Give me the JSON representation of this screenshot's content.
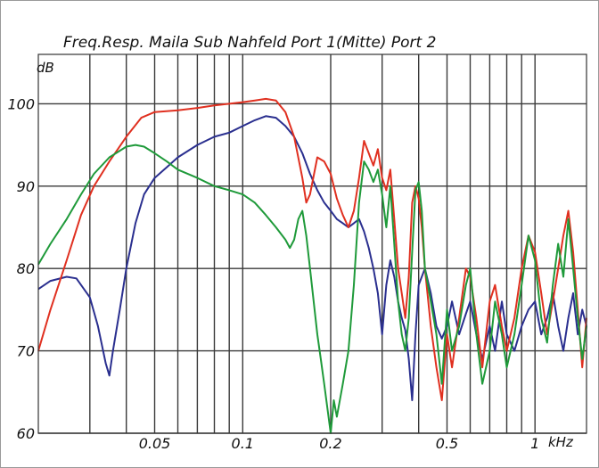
{
  "chart_data": {
    "type": "line",
    "title": "Freq.Resp. Maila Sub Nahfeld Port 1(Mitte)   Port 2",
    "ylabel": "dB",
    "xunit": "kHz",
    "xscale": "log",
    "xlim": [
      0.02,
      1.5
    ],
    "ylim": [
      60,
      106
    ],
    "grid": true,
    "y_ticks": [
      60,
      70,
      80,
      90,
      100
    ],
    "x_ticks": [
      {
        "value": 0.05,
        "label": "0.05"
      },
      {
        "value": 0.1,
        "label": "0.1"
      },
      {
        "value": 0.2,
        "label": "0.2"
      },
      {
        "value": 0.5,
        "label": "0.5"
      },
      {
        "value": 1,
        "label": "1"
      }
    ],
    "x_gridlines": [
      0.03,
      0.04,
      0.05,
      0.06,
      0.07,
      0.08,
      0.09,
      0.1,
      0.2,
      0.3,
      0.4,
      0.5,
      0.6,
      0.7,
      0.8,
      0.9,
      1
    ],
    "series": [
      {
        "color": "#2a2f8f",
        "points": [
          [
            0.02,
            77.5
          ],
          [
            0.022,
            78.5
          ],
          [
            0.025,
            79.0
          ],
          [
            0.027,
            78.8
          ],
          [
            0.03,
            76.5
          ],
          [
            0.032,
            73.0
          ],
          [
            0.034,
            68.5
          ],
          [
            0.035,
            67.0
          ],
          [
            0.036,
            70.0
          ],
          [
            0.038,
            75.0
          ],
          [
            0.04,
            80.0
          ],
          [
            0.043,
            85.5
          ],
          [
            0.046,
            89.0
          ],
          [
            0.05,
            91.0
          ],
          [
            0.055,
            92.3
          ],
          [
            0.06,
            93.5
          ],
          [
            0.07,
            95.0
          ],
          [
            0.08,
            96.0
          ],
          [
            0.09,
            96.5
          ],
          [
            0.1,
            97.3
          ],
          [
            0.11,
            98.0
          ],
          [
            0.12,
            98.5
          ],
          [
            0.13,
            98.3
          ],
          [
            0.14,
            97.3
          ],
          [
            0.15,
            96.0
          ],
          [
            0.16,
            94.0
          ],
          [
            0.17,
            91.5
          ],
          [
            0.18,
            89.5
          ],
          [
            0.19,
            88.0
          ],
          [
            0.2,
            87.0
          ],
          [
            0.21,
            86.0
          ],
          [
            0.22,
            85.5
          ],
          [
            0.23,
            85.0
          ],
          [
            0.24,
            85.5
          ],
          [
            0.25,
            86.0
          ],
          [
            0.26,
            84.5
          ],
          [
            0.27,
            82.5
          ],
          [
            0.28,
            80.0
          ],
          [
            0.29,
            77.0
          ],
          [
            0.3,
            72.0
          ],
          [
            0.31,
            78.0
          ],
          [
            0.32,
            81.0
          ],
          [
            0.33,
            79.0
          ],
          [
            0.34,
            76.0
          ],
          [
            0.35,
            74.0
          ],
          [
            0.36,
            72.5
          ],
          [
            0.37,
            69.0
          ],
          [
            0.38,
            64.0
          ],
          [
            0.39,
            72.0
          ],
          [
            0.4,
            78.0
          ],
          [
            0.42,
            80.0
          ],
          [
            0.44,
            77.0
          ],
          [
            0.46,
            73.0
          ],
          [
            0.48,
            71.5
          ],
          [
            0.5,
            73.0
          ],
          [
            0.52,
            76.0
          ],
          [
            0.55,
            72.0
          ],
          [
            0.58,
            74.5
          ],
          [
            0.6,
            76.0
          ],
          [
            0.63,
            72.0
          ],
          [
            0.66,
            69.0
          ],
          [
            0.7,
            73.0
          ],
          [
            0.73,
            70.0
          ],
          [
            0.77,
            76.0
          ],
          [
            0.8,
            72.0
          ],
          [
            0.85,
            70.0
          ],
          [
            0.9,
            73.0
          ],
          [
            0.95,
            75.0
          ],
          [
            1.0,
            76.0
          ],
          [
            1.05,
            72.0
          ],
          [
            1.1,
            74.0
          ],
          [
            1.15,
            77.0
          ],
          [
            1.2,
            73.0
          ],
          [
            1.25,
            70.0
          ],
          [
            1.3,
            74.0
          ],
          [
            1.35,
            77.0
          ],
          [
            1.4,
            72.0
          ],
          [
            1.45,
            75.0
          ],
          [
            1.5,
            73.0
          ]
        ]
      },
      {
        "color": "#e03020",
        "points": [
          [
            0.02,
            70.0
          ],
          [
            0.022,
            75.0
          ],
          [
            0.025,
            81.0
          ],
          [
            0.028,
            86.5
          ],
          [
            0.031,
            90.0
          ],
          [
            0.035,
            93.0
          ],
          [
            0.04,
            96.0
          ],
          [
            0.045,
            98.3
          ],
          [
            0.05,
            99.0
          ],
          [
            0.06,
            99.2
          ],
          [
            0.07,
            99.5
          ],
          [
            0.08,
            99.8
          ],
          [
            0.09,
            100.0
          ],
          [
            0.1,
            100.2
          ],
          [
            0.11,
            100.4
          ],
          [
            0.12,
            100.6
          ],
          [
            0.13,
            100.4
          ],
          [
            0.14,
            99.0
          ],
          [
            0.15,
            96.0
          ],
          [
            0.16,
            91.0
          ],
          [
            0.165,
            88.0
          ],
          [
            0.17,
            89.0
          ],
          [
            0.18,
            93.5
          ],
          [
            0.19,
            93.0
          ],
          [
            0.2,
            91.5
          ],
          [
            0.21,
            88.5
          ],
          [
            0.22,
            86.5
          ],
          [
            0.23,
            85.0
          ],
          [
            0.24,
            87.0
          ],
          [
            0.25,
            91.0
          ],
          [
            0.26,
            95.5
          ],
          [
            0.27,
            94.0
          ],
          [
            0.28,
            92.5
          ],
          [
            0.29,
            94.5
          ],
          [
            0.3,
            91.0
          ],
          [
            0.31,
            89.5
          ],
          [
            0.32,
            92.0
          ],
          [
            0.33,
            86.0
          ],
          [
            0.34,
            80.0
          ],
          [
            0.35,
            77.0
          ],
          [
            0.36,
            74.0
          ],
          [
            0.37,
            79.0
          ],
          [
            0.38,
            88.0
          ],
          [
            0.39,
            90.0
          ],
          [
            0.4,
            88.5
          ],
          [
            0.41,
            85.0
          ],
          [
            0.42,
            80.0
          ],
          [
            0.44,
            73.0
          ],
          [
            0.46,
            68.0
          ],
          [
            0.48,
            64.0
          ],
          [
            0.5,
            72.0
          ],
          [
            0.52,
            68.0
          ],
          [
            0.55,
            74.0
          ],
          [
            0.58,
            80.0
          ],
          [
            0.6,
            79.0
          ],
          [
            0.63,
            74.0
          ],
          [
            0.66,
            68.0
          ],
          [
            0.7,
            76.0
          ],
          [
            0.73,
            78.0
          ],
          [
            0.77,
            73.0
          ],
          [
            0.8,
            70.0
          ],
          [
            0.85,
            74.0
          ],
          [
            0.9,
            80.0
          ],
          [
            0.95,
            84.0
          ],
          [
            1.0,
            82.0
          ],
          [
            1.05,
            77.0
          ],
          [
            1.1,
            72.0
          ],
          [
            1.15,
            76.0
          ],
          [
            1.2,
            80.0
          ],
          [
            1.25,
            84.0
          ],
          [
            1.3,
            87.0
          ],
          [
            1.35,
            82.0
          ],
          [
            1.4,
            75.0
          ],
          [
            1.45,
            68.0
          ],
          [
            1.5,
            74.0
          ]
        ]
      },
      {
        "color": "#1f9a3a",
        "points": [
          [
            0.02,
            80.5
          ],
          [
            0.022,
            83.0
          ],
          [
            0.025,
            86.0
          ],
          [
            0.028,
            89.0
          ],
          [
            0.031,
            91.5
          ],
          [
            0.035,
            93.5
          ],
          [
            0.04,
            94.8
          ],
          [
            0.043,
            95.0
          ],
          [
            0.046,
            94.8
          ],
          [
            0.05,
            94.0
          ],
          [
            0.055,
            93.0
          ],
          [
            0.06,
            92.0
          ],
          [
            0.07,
            91.0
          ],
          [
            0.08,
            90.0
          ],
          [
            0.09,
            89.5
          ],
          [
            0.1,
            89.0
          ],
          [
            0.11,
            88.0
          ],
          [
            0.12,
            86.5
          ],
          [
            0.13,
            85.0
          ],
          [
            0.14,
            83.5
          ],
          [
            0.145,
            82.5
          ],
          [
            0.15,
            83.5
          ],
          [
            0.155,
            86.0
          ],
          [
            0.16,
            87.0
          ],
          [
            0.165,
            84.0
          ],
          [
            0.17,
            80.0
          ],
          [
            0.18,
            72.0
          ],
          [
            0.185,
            69.0
          ],
          [
            0.19,
            66.0
          ],
          [
            0.2,
            60.0
          ],
          [
            0.205,
            64.0
          ],
          [
            0.21,
            62.0
          ],
          [
            0.22,
            66.0
          ],
          [
            0.23,
            70.0
          ],
          [
            0.24,
            78.0
          ],
          [
            0.25,
            88.0
          ],
          [
            0.26,
            93.0
          ],
          [
            0.27,
            92.0
          ],
          [
            0.28,
            90.5
          ],
          [
            0.29,
            92.0
          ],
          [
            0.3,
            89.0
          ],
          [
            0.31,
            85.0
          ],
          [
            0.32,
            90.0
          ],
          [
            0.33,
            83.0
          ],
          [
            0.34,
            76.0
          ],
          [
            0.35,
            72.0
          ],
          [
            0.36,
            70.0
          ],
          [
            0.37,
            74.0
          ],
          [
            0.38,
            82.0
          ],
          [
            0.39,
            89.5
          ],
          [
            0.4,
            90.5
          ],
          [
            0.41,
            87.0
          ],
          [
            0.42,
            80.0
          ],
          [
            0.44,
            76.0
          ],
          [
            0.46,
            72.0
          ],
          [
            0.48,
            66.0
          ],
          [
            0.5,
            75.0
          ],
          [
            0.52,
            70.0
          ],
          [
            0.55,
            73.0
          ],
          [
            0.58,
            78.0
          ],
          [
            0.6,
            80.0
          ],
          [
            0.63,
            72.0
          ],
          [
            0.66,
            66.0
          ],
          [
            0.7,
            70.0
          ],
          [
            0.73,
            76.0
          ],
          [
            0.77,
            72.0
          ],
          [
            0.8,
            68.0
          ],
          [
            0.85,
            72.0
          ],
          [
            0.9,
            78.0
          ],
          [
            0.95,
            84.0
          ],
          [
            1.0,
            81.0
          ],
          [
            1.05,
            74.0
          ],
          [
            1.1,
            71.0
          ],
          [
            1.15,
            78.0
          ],
          [
            1.2,
            83.0
          ],
          [
            1.25,
            79.0
          ],
          [
            1.3,
            86.0
          ],
          [
            1.35,
            80.0
          ],
          [
            1.4,
            74.0
          ],
          [
            1.45,
            69.0
          ],
          [
            1.5,
            73.0
          ]
        ]
      }
    ]
  }
}
